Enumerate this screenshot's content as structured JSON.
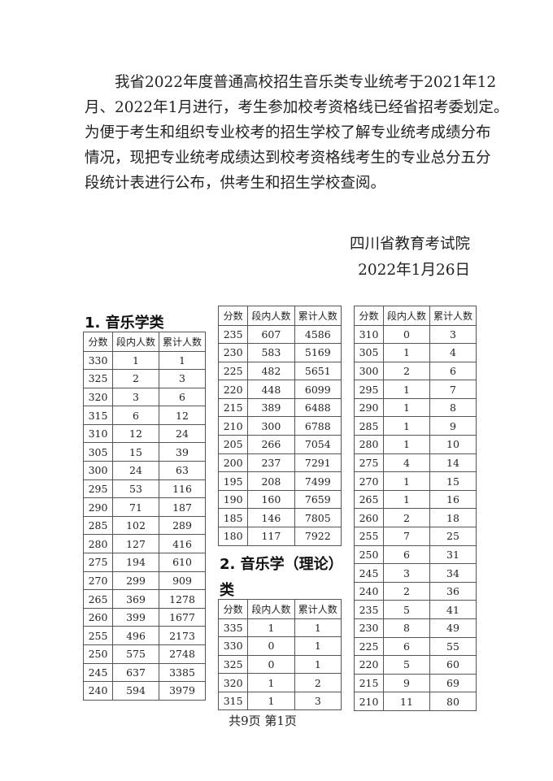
{
  "paragraph": {
    "lines": [
      "我省2022年度普通高校招生音乐类专业统考于2021年12",
      "月、2022年1月进行，考生参加校考资格线已经省招考委划定。",
      "为便于考生和组织专业校考的招生学校了解专业统考成绩分布",
      "情况，现把专业统考成绩达到校考资格线考生的专业总分五分",
      "段统计表进行公布，供考生和招生学校查阅。"
    ]
  },
  "signature": {
    "org": "四川省教育考试院",
    "date": "2022年1月26日"
  },
  "headers": [
    "分数",
    "段内人数",
    "累计人数"
  ],
  "section1": {
    "title": "1. 音乐学类",
    "rows": [
      [
        "330",
        "1",
        "1"
      ],
      [
        "325",
        "2",
        "3"
      ],
      [
        "320",
        "3",
        "6"
      ],
      [
        "315",
        "6",
        "12"
      ],
      [
        "310",
        "12",
        "24"
      ],
      [
        "305",
        "15",
        "39"
      ],
      [
        "300",
        "24",
        "63"
      ],
      [
        "295",
        "53",
        "116"
      ],
      [
        "290",
        "71",
        "187"
      ],
      [
        "285",
        "102",
        "289"
      ],
      [
        "280",
        "127",
        "416"
      ],
      [
        "275",
        "194",
        "610"
      ],
      [
        "270",
        "299",
        "909"
      ],
      [
        "265",
        "369",
        "1278"
      ],
      [
        "260",
        "399",
        "1677"
      ],
      [
        "255",
        "496",
        "2173"
      ],
      [
        "250",
        "575",
        "2748"
      ],
      [
        "245",
        "637",
        "3385"
      ],
      [
        "240",
        "594",
        "3979"
      ]
    ],
    "rows_cont": [
      [
        "235",
        "607",
        "4586"
      ],
      [
        "230",
        "583",
        "5169"
      ],
      [
        "225",
        "482",
        "5651"
      ],
      [
        "220",
        "448",
        "6099"
      ],
      [
        "215",
        "389",
        "6488"
      ],
      [
        "210",
        "300",
        "6788"
      ],
      [
        "205",
        "266",
        "7054"
      ],
      [
        "200",
        "237",
        "7291"
      ],
      [
        "195",
        "208",
        "7499"
      ],
      [
        "190",
        "160",
        "7659"
      ],
      [
        "185",
        "146",
        "7805"
      ],
      [
        "180",
        "117",
        "7922"
      ]
    ]
  },
  "section2": {
    "title_line1": "2. 音乐学（理论）",
    "title_line2": "类",
    "rows": [
      [
        "335",
        "1",
        "1"
      ],
      [
        "330",
        "0",
        "1"
      ],
      [
        "325",
        "0",
        "1"
      ],
      [
        "320",
        "1",
        "2"
      ],
      [
        "315",
        "1",
        "3"
      ]
    ],
    "rows_cont": [
      [
        "310",
        "0",
        "3"
      ],
      [
        "305",
        "1",
        "4"
      ],
      [
        "300",
        "2",
        "6"
      ],
      [
        "295",
        "1",
        "7"
      ],
      [
        "290",
        "1",
        "8"
      ],
      [
        "285",
        "1",
        "9"
      ],
      [
        "280",
        "1",
        "10"
      ],
      [
        "275",
        "4",
        "14"
      ],
      [
        "270",
        "1",
        "15"
      ],
      [
        "265",
        "1",
        "16"
      ],
      [
        "260",
        "2",
        "18"
      ],
      [
        "255",
        "7",
        "25"
      ],
      [
        "250",
        "6",
        "31"
      ],
      [
        "245",
        "3",
        "34"
      ],
      [
        "240",
        "2",
        "36"
      ],
      [
        "235",
        "5",
        "41"
      ],
      [
        "230",
        "8",
        "49"
      ],
      [
        "225",
        "6",
        "55"
      ],
      [
        "220",
        "5",
        "60"
      ],
      [
        "215",
        "9",
        "69"
      ],
      [
        "210",
        "11",
        "80"
      ]
    ]
  },
  "footer": "共9页   第1页"
}
